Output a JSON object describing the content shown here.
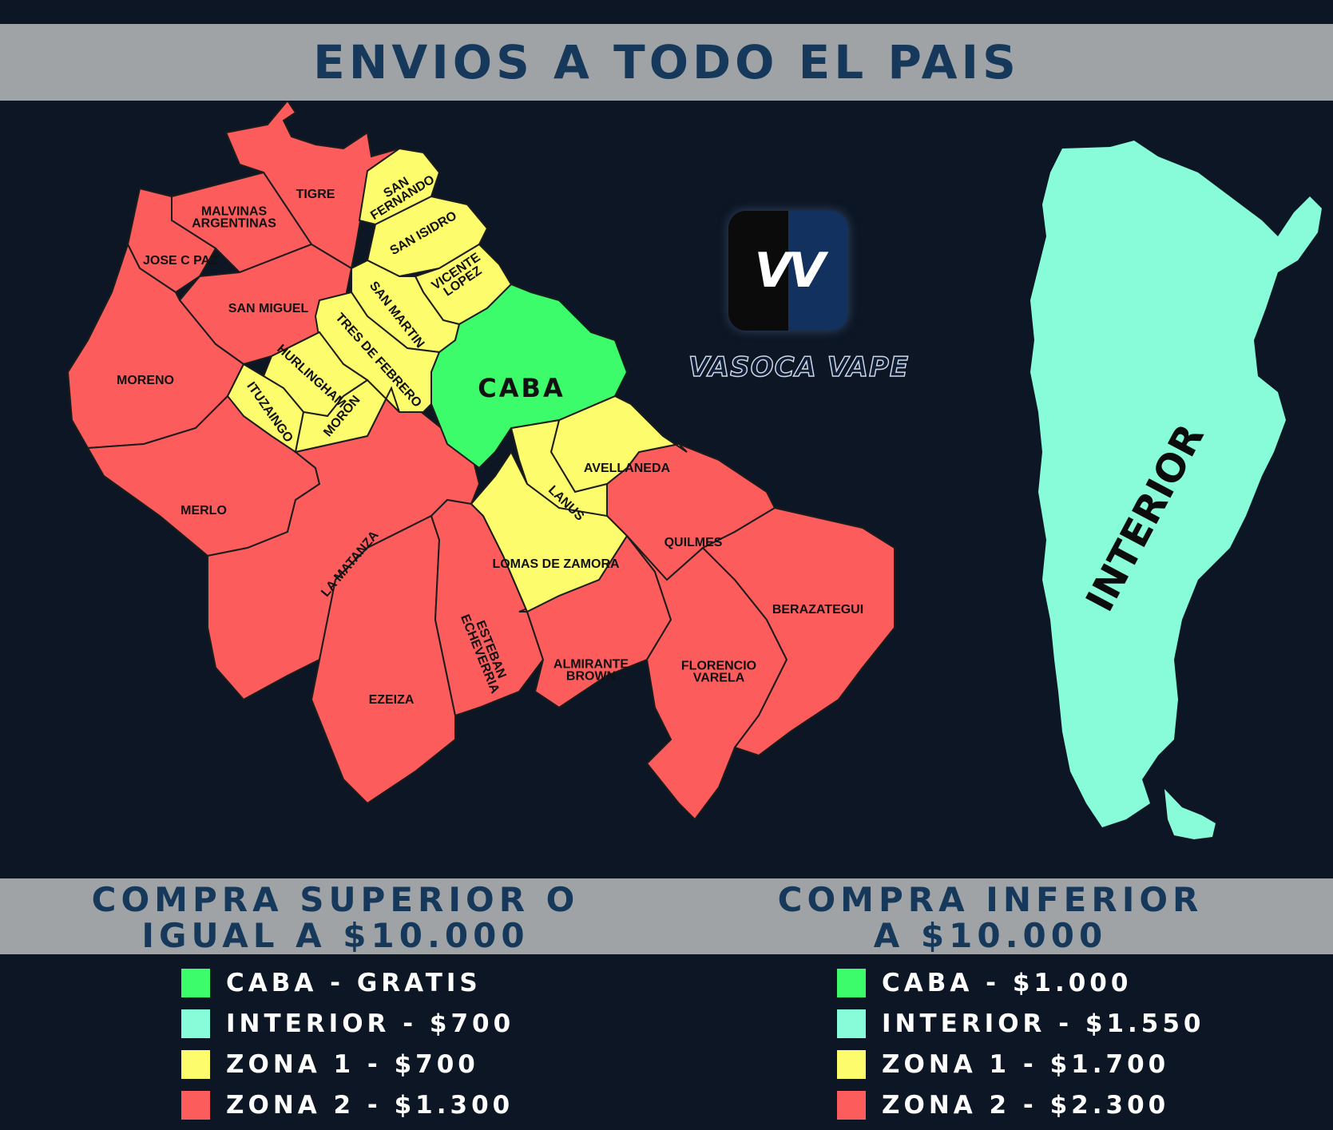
{
  "header": {
    "title": "ENVIOS A TODO EL PAIS"
  },
  "logo": {
    "mark": "VV",
    "wordmark": "VASOCA VAPE"
  },
  "colors": {
    "caba": "#3cfc6b",
    "interior": "#88fcd8",
    "zona1": "#fcfc6c",
    "zona2": "#fc5c5c"
  },
  "map": {
    "regions": [
      {
        "name": "TIGRE",
        "zone": "zona2"
      },
      {
        "name": "SAN FERNANDO",
        "zone": "zona1"
      },
      {
        "name": "MALVINAS ARGENTINAS",
        "zone": "zona2"
      },
      {
        "name": "SAN ISIDRO",
        "zone": "zona1"
      },
      {
        "name": "JOSE C PAZ",
        "zone": "zona2"
      },
      {
        "name": "VICENTE LOPEZ",
        "zone": "zona1"
      },
      {
        "name": "SAN MIGUEL",
        "zone": "zona2"
      },
      {
        "name": "SAN MARTIN",
        "zone": "zona1"
      },
      {
        "name": "TRES DE FEBRERO",
        "zone": "zona1"
      },
      {
        "name": "HURLINGHAM",
        "zone": "zona1"
      },
      {
        "name": "MORENO",
        "zone": "zona2"
      },
      {
        "name": "CABA",
        "zone": "caba"
      },
      {
        "name": "ITUZAINGO",
        "zone": "zona1"
      },
      {
        "name": "MORON",
        "zone": "zona1"
      },
      {
        "name": "AVELLANEDA",
        "zone": "zona1"
      },
      {
        "name": "LANUS",
        "zone": "zona1"
      },
      {
        "name": "MERLO",
        "zone": "zona2"
      },
      {
        "name": "QUILMES",
        "zone": "zona2"
      },
      {
        "name": "LA MATANZA",
        "zone": "zona2"
      },
      {
        "name": "LOMAS DE ZAMORA",
        "zone": "zona1"
      },
      {
        "name": "BERAZATEGUI",
        "zone": "zona2"
      },
      {
        "name": "ESTEBAN ECHEVERRIA",
        "zone": "zona2"
      },
      {
        "name": "ALMIRANTE BROWN",
        "zone": "zona2"
      },
      {
        "name": "FLORENCIO VARELA",
        "zone": "zona2"
      },
      {
        "name": "EZEIZA",
        "zone": "zona2"
      }
    ],
    "interior_label": "INTERIOR"
  },
  "pricing": {
    "over": {
      "heading_line1": "COMPRA SUPERIOR O",
      "heading_line2": "IGUAL A $10.000",
      "items": [
        {
          "label": "CABA - GRATIS",
          "zone": "caba"
        },
        {
          "label": "INTERIOR - $700",
          "zone": "interior"
        },
        {
          "label": "ZONA 1 - $700",
          "zone": "zona1"
        },
        {
          "label": "ZONA 2 - $1.300",
          "zone": "zona2"
        }
      ]
    },
    "under": {
      "heading_line1": "COMPRA INFERIOR",
      "heading_line2": "A $10.000",
      "items": [
        {
          "label": "CABA - $1.000",
          "zone": "caba"
        },
        {
          "label": "INTERIOR - $1.550",
          "zone": "interior"
        },
        {
          "label": "ZONA 1 - $1.700",
          "zone": "zona1"
        },
        {
          "label": "ZONA 2 - $2.300",
          "zone": "zona2"
        }
      ]
    }
  }
}
